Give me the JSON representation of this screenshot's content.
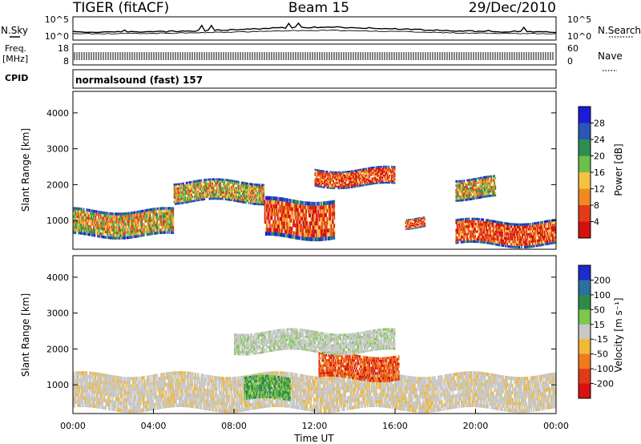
{
  "header": {
    "radar": "TIGER (fitACF)",
    "beam": "Beam 15",
    "date": "29/Dec/2010",
    "cpid_label": "CPID",
    "cpid_value": "normalsound (fast) 157"
  },
  "strips": {
    "nsky_label": "N.Sky",
    "nsky_ticks": [
      "10^5",
      "10^0"
    ],
    "nsearch_label": "N.Search",
    "nsearch_ticks": [
      "10^5",
      "10^0"
    ],
    "freq_label_1": "Freq.",
    "freq_label_2": "[MHz]",
    "freq_ticks": [
      "18",
      "8"
    ],
    "nave_label": "Nave",
    "nave_ticks": [
      "60",
      "0"
    ]
  },
  "chart_data": [
    {
      "type": "heatmap",
      "parameter": "power",
      "ylabel": "Slant Range [km]",
      "xlabel": "",
      "yticks": [
        "4000",
        "3000",
        "2000",
        "1000"
      ],
      "ylim": [
        200,
        4600
      ],
      "colorbar": {
        "label": "Power [dB]",
        "ticks": [
          "28",
          "24",
          "20",
          "16",
          "12",
          "8",
          "4"
        ],
        "colors": [
          "#1b1bdc",
          "#2b56b8",
          "#2c8f50",
          "#6bbf4a",
          "#f5c242",
          "#f08a20",
          "#e43a1c",
          "#d41010"
        ]
      },
      "bands": [
        {
          "t0": 0.0,
          "t1": 5.0,
          "r0": 550,
          "r1": 1300,
          "level": "high"
        },
        {
          "t0": 5.0,
          "t1": 9.5,
          "r0": 1500,
          "r1": 2100,
          "level": "high"
        },
        {
          "t0": 9.5,
          "t1": 13.0,
          "r0": 500,
          "r1": 1600,
          "level": "very_high"
        },
        {
          "t0": 12.0,
          "t1": 16.0,
          "r0": 1950,
          "r1": 2450,
          "level": "very_high"
        },
        {
          "t0": 16.5,
          "t1": 17.5,
          "r0": 800,
          "r1": 1100,
          "level": "very_high"
        },
        {
          "t0": 19.0,
          "t1": 21.0,
          "r0": 1600,
          "r1": 2200,
          "level": "high"
        },
        {
          "t0": 19.0,
          "t1": 24.0,
          "r0": 300,
          "r1": 1000,
          "level": "very_high"
        }
      ]
    },
    {
      "type": "heatmap",
      "parameter": "velocity",
      "ylabel": "Slant Range [km]",
      "xlabel": "Time UT",
      "yticks": [
        "4000",
        "3000",
        "2000",
        "1000"
      ],
      "ylim": [
        200,
        4600
      ],
      "xticks": [
        "00:00",
        "04:00",
        "08:00",
        "12:00",
        "16:00",
        "20:00",
        "00:00"
      ],
      "xlim": [
        0,
        24
      ],
      "colorbar": {
        "label": "Velocity [m s⁻¹]",
        "ticks": [
          "200",
          "100",
          "50",
          "15",
          "-15",
          "-50",
          "-100",
          "-200"
        ],
        "colors": [
          "#1c2cc8",
          "#2c6fa0",
          "#2f8a4a",
          "#7cc84a",
          "#c8c8c8",
          "#f2b836",
          "#f07a1c",
          "#e23a18",
          "#d81010"
        ]
      },
      "bands": [
        {
          "t0": 0.0,
          "t1": 24.0,
          "r0": 300,
          "r1": 1300,
          "level": "ground"
        },
        {
          "t0": 8.5,
          "t1": 10.8,
          "r0": 550,
          "r1": 1200,
          "level": "toward"
        },
        {
          "t0": 12.2,
          "t1": 16.2,
          "r0": 1150,
          "r1": 1850,
          "level": "away"
        },
        {
          "t0": 8.0,
          "t1": 16.0,
          "r0": 1900,
          "r1": 2500,
          "level": "near_zero"
        }
      ]
    }
  ]
}
